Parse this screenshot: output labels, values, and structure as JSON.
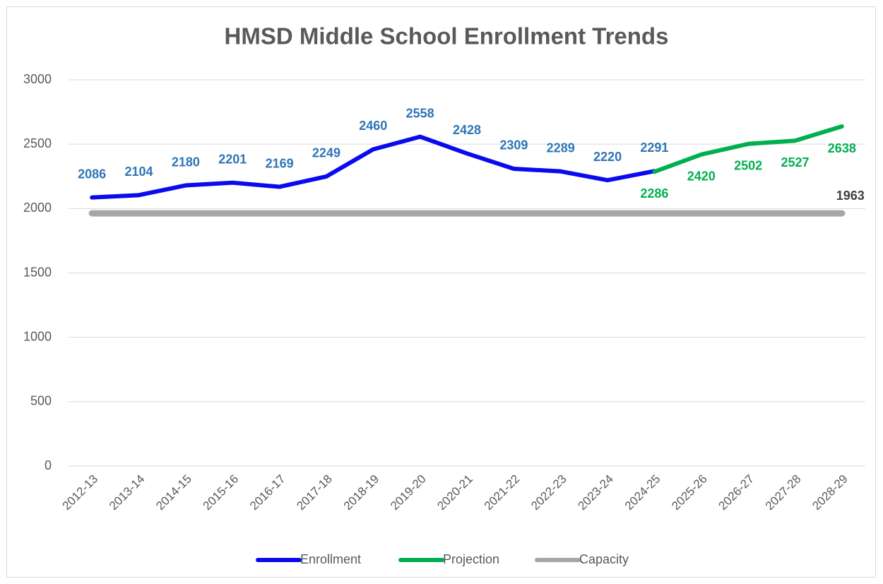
{
  "chart_data": {
    "type": "line",
    "title": "HMSD Middle School Enrollment Trends",
    "categories": [
      "2012-13",
      "2013-14",
      "2014-15",
      "2015-16",
      "2016-17",
      "2017-18",
      "2018-19",
      "2019-20",
      "2020-21",
      "2021-22",
      "2022-23",
      "2023-24",
      "2024-25",
      "2025-26",
      "2026-27",
      "2027-28",
      "2028-29"
    ],
    "series": [
      {
        "name": "Enrollment",
        "color": "#0a0aee",
        "label_color": "#2e75b6",
        "labels": "above",
        "values": [
          2086,
          2104,
          2180,
          2201,
          2169,
          2249,
          2460,
          2558,
          2428,
          2309,
          2289,
          2220,
          2291,
          null,
          null,
          null,
          null
        ]
      },
      {
        "name": "Projection",
        "color": "#00b050",
        "label_color": "#00b050",
        "labels": "below",
        "values": [
          null,
          null,
          null,
          null,
          null,
          null,
          null,
          null,
          null,
          null,
          null,
          null,
          2286,
          2420,
          2502,
          2527,
          2638
        ]
      },
      {
        "name": "Capacity",
        "color": "#a6a6a6",
        "label_color": "#404040",
        "labels": "last",
        "values": [
          1963,
          1963,
          1963,
          1963,
          1963,
          1963,
          1963,
          1963,
          1963,
          1963,
          1963,
          1963,
          1963,
          1963,
          1963,
          1963,
          1963
        ]
      }
    ],
    "ylim": [
      0,
      3000
    ],
    "yticks": [
      0,
      500,
      1000,
      1500,
      2000,
      2500,
      3000
    ],
    "grid": true,
    "legend": "bottom"
  }
}
